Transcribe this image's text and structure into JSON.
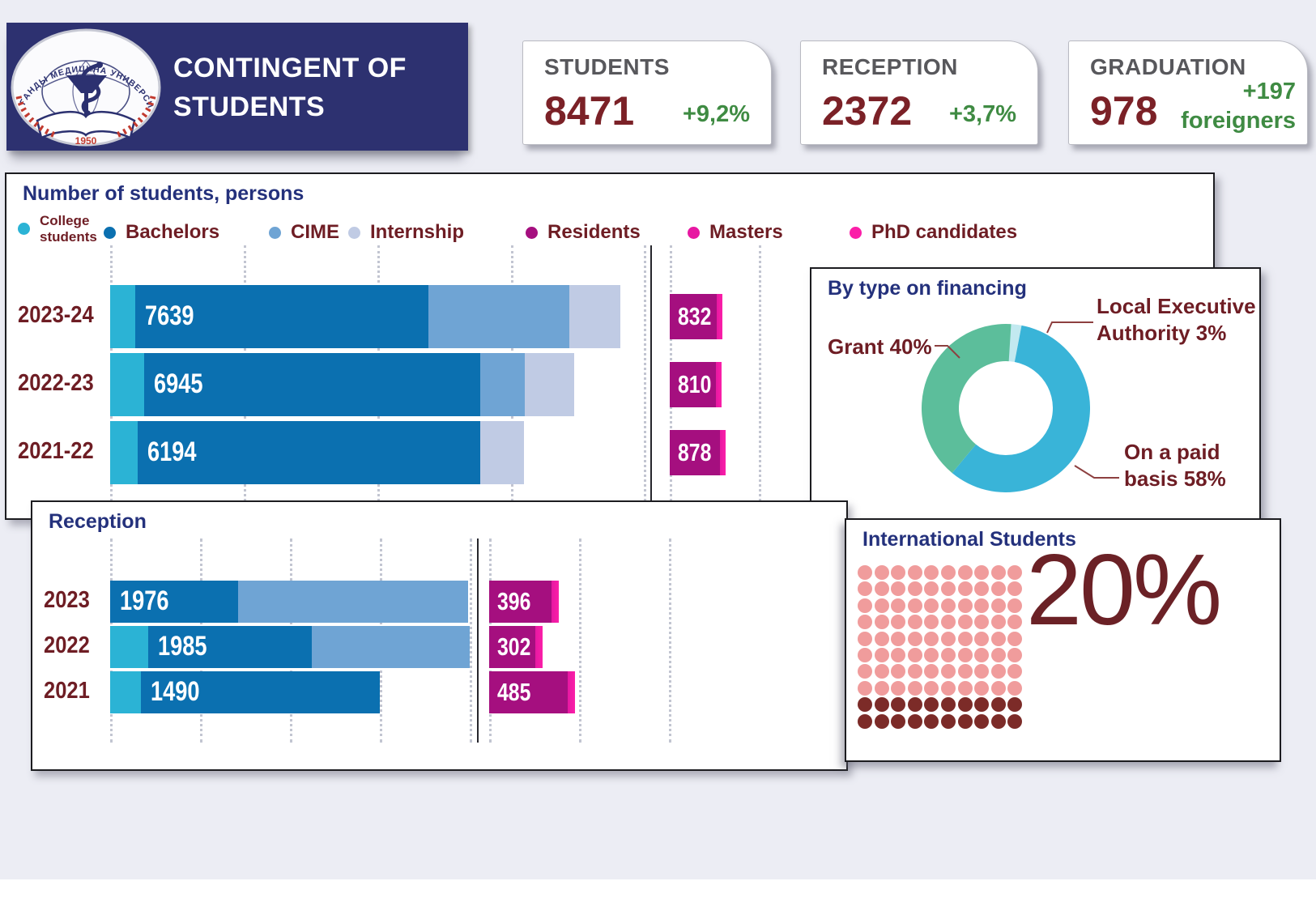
{
  "header": {
    "title_line1": "CONTINGENT OF",
    "title_line2": "STUDENTS",
    "logo": {
      "arc_text": "ҚАРАҒАНДЫ МЕДИЦИНА УНИВЕРСИТЕТІ",
      "year": "1950"
    }
  },
  "kpis": [
    {
      "label": "STUDENTS",
      "value": "8471",
      "delta": "+9,2%"
    },
    {
      "label": "RECEPTION",
      "value": "2372",
      "delta": "+3,7%"
    },
    {
      "label": "GRADUATION",
      "value": "978",
      "delta": "+197",
      "delta_sub": "foreigners"
    }
  ],
  "colors": {
    "header_bg": "#2d3170",
    "title_navy": "#24317c",
    "maroon_text": "#6e1d24",
    "kpi_value": "#7b2127",
    "kpi_delta_green": "#3f8b43",
    "college": "#2bb3d5",
    "bachelors": "#0b70b0",
    "cime": "#6fa4d4",
    "internship": "#c0cbe4",
    "residents": "#a50f7f",
    "masters": "#e718a2",
    "phd": "#fb1fa8",
    "donut_grant": "#5cbe9b",
    "donut_paid": "#39b4d8",
    "donut_lea": "#c2e9f0",
    "waffle_rest": "#f09c9c",
    "waffle_highlight": "#7c2b28"
  },
  "chart_data": [
    {
      "type": "bar",
      "orientation": "horizontal-stacked",
      "title": "Number of students, persons",
      "legend": [
        {
          "label": "College students",
          "color": "#2bb3d5"
        },
        {
          "label": "Bachelors",
          "color": "#0b70b0"
        },
        {
          "label": "CIME",
          "color": "#6fa4d4"
        },
        {
          "label": "Internship",
          "color": "#c0cbe4"
        },
        {
          "label": "Residents",
          "color": "#a50f7f"
        },
        {
          "label": "Masters",
          "color": "#e718a2"
        },
        {
          "label": "PhD candidates",
          "color": "#fb1fa8"
        }
      ],
      "categories": [
        "2023-24",
        "2022-23",
        "2021-22"
      ],
      "stack_series": [
        "College students",
        "Bachelors",
        "CIME",
        "Internship"
      ],
      "rows": [
        {
          "label": "2023-24",
          "total": 7639,
          "total_label": "7639",
          "values": [
            376,
            4388,
            2111,
            764
          ]
        },
        {
          "label": "2022-23",
          "total": 6945,
          "total_label": "6945",
          "values": [
            509,
            5030,
            667,
            739
          ]
        },
        {
          "label": "2021-22",
          "total": 6194,
          "total_label": "6194",
          "values": [
            412,
            5127,
            0,
            655
          ]
        }
      ],
      "residents_series": {
        "name": "Residents",
        "values": [
          832,
          810,
          878
        ],
        "labels": [
          "832",
          "810",
          "878"
        ]
      },
      "xlim": [
        0,
        8000
      ],
      "grid_step": 2000,
      "grid": true
    },
    {
      "type": "pie",
      "variant": "donut",
      "title": "By type on financing",
      "slices": [
        {
          "label": "Local Executive Authority",
          "pct": 3,
          "color": "#c2e9f0"
        },
        {
          "label": "On a paid basis",
          "pct": 58,
          "color": "#39b4d8"
        },
        {
          "label": "Grant",
          "pct": 40,
          "color": "#5cbe9b"
        }
      ],
      "callouts": [
        {
          "text": "Grant 40%"
        },
        {
          "text": "Local Executive Authority 3%"
        },
        {
          "text": "On a paid basis 58%"
        }
      ]
    },
    {
      "type": "bar",
      "orientation": "horizontal-stacked",
      "title": "Reception",
      "categories": [
        "2023",
        "2022",
        "2021"
      ],
      "stack_series": [
        "College students",
        "Bachelors",
        "CIME"
      ],
      "rows": [
        {
          "label": "2023",
          "total": 1976,
          "total_label": "1976",
          "values": [
            0,
            707,
            1269
          ]
        },
        {
          "label": "2022",
          "total": 1985,
          "total_label": "1985",
          "values": [
            212,
            900,
            873
          ]
        },
        {
          "label": "2021",
          "total": 1490,
          "total_label": "1490",
          "values": [
            171,
            1319,
            0
          ]
        }
      ],
      "residents_series": {
        "name": "Residents",
        "values": [
          396,
          302,
          485
        ],
        "labels": [
          "396",
          "302",
          "485"
        ]
      },
      "xlim": [
        0,
        2000
      ],
      "grid_step": 500,
      "grid": true
    },
    {
      "type": "waffle",
      "title": "International Students",
      "percent": 20,
      "percent_label": "20%",
      "grid_rows": 10,
      "grid_cols": 10,
      "highlighted_bottom_rows": 2
    }
  ]
}
